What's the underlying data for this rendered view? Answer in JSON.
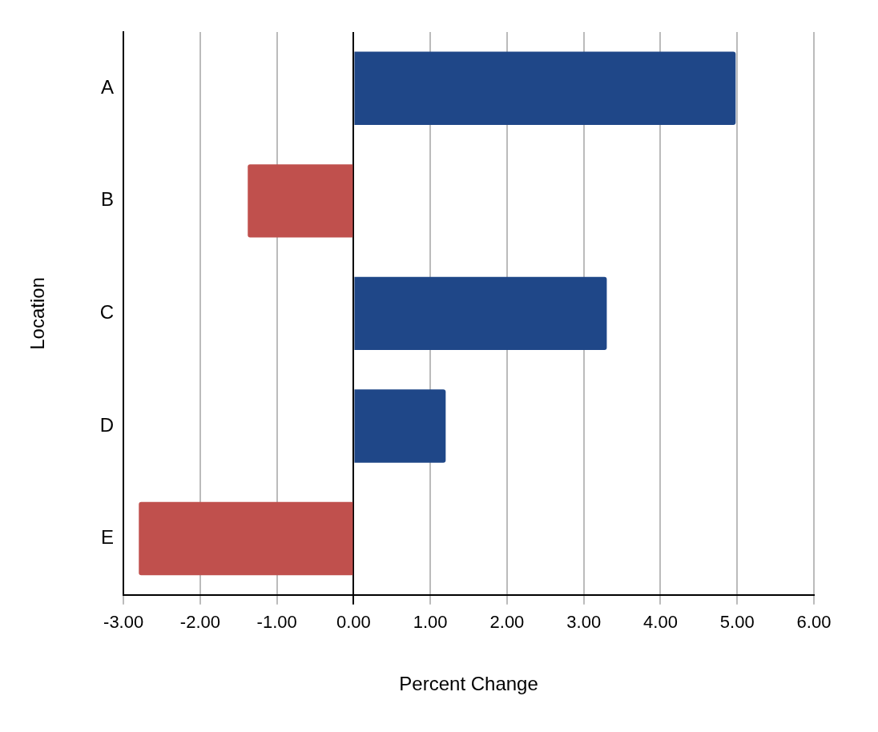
{
  "chart_data": {
    "type": "bar",
    "orientation": "horizontal",
    "categories": [
      "A",
      "B",
      "C",
      "D",
      "E"
    ],
    "values": [
      4.98,
      -1.38,
      3.3,
      1.2,
      -2.8
    ],
    "colors": [
      "#1f4788",
      "#c0504d",
      "#1f4788",
      "#1f4788",
      "#c0504d"
    ],
    "x_label": "Percent Change",
    "y_label": "Location",
    "xlim": [
      -3,
      6
    ],
    "xticks": [
      {
        "value": -3,
        "label": "-3.00"
      },
      {
        "value": -2,
        "label": "-2.00"
      },
      {
        "value": -1,
        "label": "-1.00"
      },
      {
        "value": 0,
        "label": "0.00"
      },
      {
        "value": 1,
        "label": "1.00"
      },
      {
        "value": 2,
        "label": "2.00"
      },
      {
        "value": 3,
        "label": "3.00"
      },
      {
        "value": 4,
        "label": "4.00"
      },
      {
        "value": 5,
        "label": "5.00"
      },
      {
        "value": 6,
        "label": "6.00"
      }
    ],
    "grid": true
  }
}
